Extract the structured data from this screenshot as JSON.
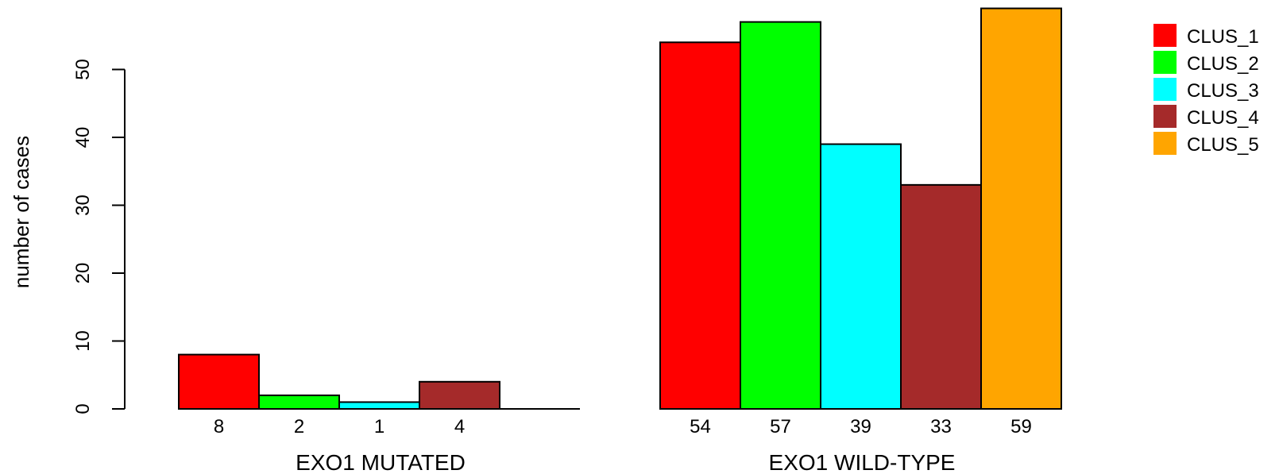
{
  "chart_data": {
    "type": "bar",
    "ylabel": "number of cases",
    "ylim": [
      0,
      60
    ],
    "yticks": [
      0,
      10,
      20,
      30,
      40,
      50
    ],
    "groups": [
      {
        "label": "EXO1 MUTATED",
        "bars": [
          {
            "series": "CLUS_1",
            "value": 8,
            "label": "8"
          },
          {
            "series": "CLUS_2",
            "value": 2,
            "label": "2"
          },
          {
            "series": "CLUS_3",
            "value": 1,
            "label": "1"
          },
          {
            "series": "CLUS_4",
            "value": 4,
            "label": "4"
          },
          {
            "series": "CLUS_5",
            "value": 0,
            "label": ""
          }
        ]
      },
      {
        "label": "EXO1 WILD-TYPE",
        "bars": [
          {
            "series": "CLUS_1",
            "value": 54,
            "label": "54"
          },
          {
            "series": "CLUS_2",
            "value": 57,
            "label": "57"
          },
          {
            "series": "CLUS_3",
            "value": 39,
            "label": "39"
          },
          {
            "series": "CLUS_4",
            "value": 33,
            "label": "33"
          },
          {
            "series": "CLUS_5",
            "value": 59,
            "label": "59"
          }
        ]
      }
    ],
    "series": [
      {
        "name": "CLUS_1",
        "color": "#ff0000"
      },
      {
        "name": "CLUS_2",
        "color": "#00ff00"
      },
      {
        "name": "CLUS_3",
        "color": "#00ffff"
      },
      {
        "name": "CLUS_4",
        "color": "#a52a2a"
      },
      {
        "name": "CLUS_5",
        "color": "#ffa500"
      }
    ],
    "legend_position": "top-right"
  }
}
